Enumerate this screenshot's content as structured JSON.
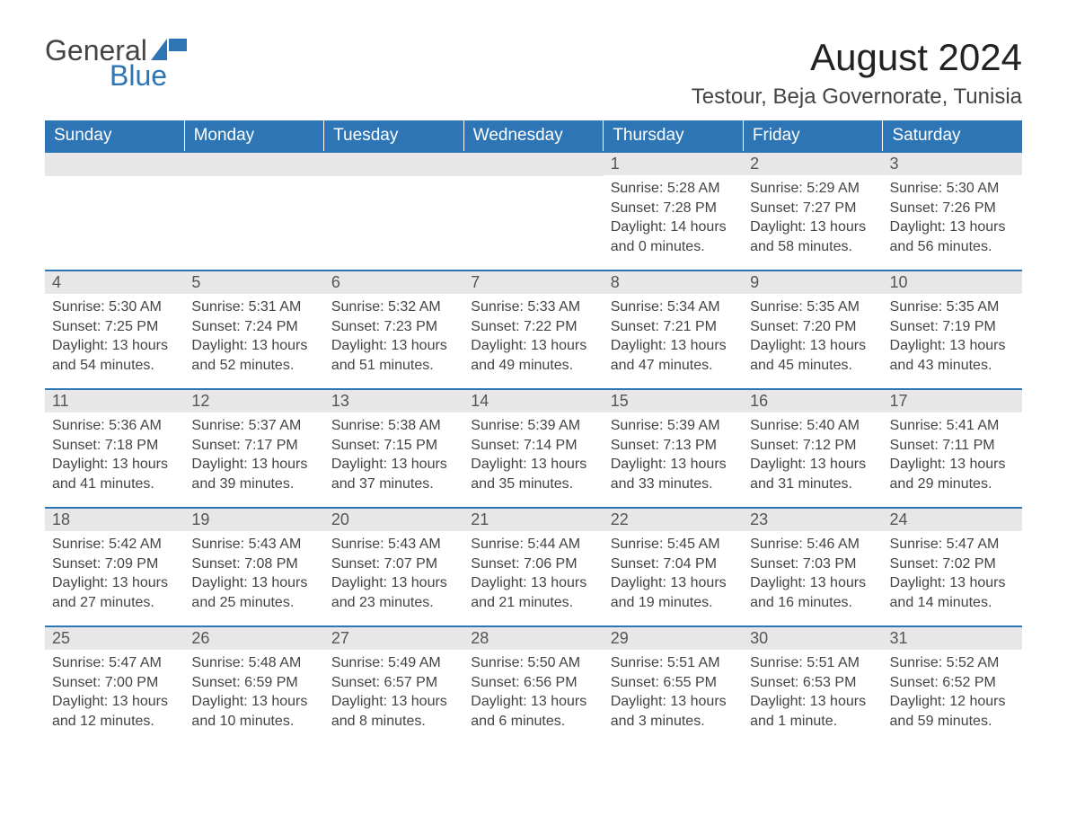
{
  "logo": {
    "word1": "General",
    "word2": "Blue",
    "flag_color": "#2e75b6"
  },
  "title": {
    "month": "August 2024",
    "location": "Testour, Beja Governorate, Tunisia"
  },
  "colors": {
    "header_bg": "#2e75b6",
    "header_text": "#ffffff",
    "row_border": "#2e75b6",
    "daynum_bg": "#e7e7e7",
    "daynum_text": "#555555",
    "body_text": "#444444",
    "page_bg": "#ffffff"
  },
  "calendar": {
    "type": "table",
    "weekdays": [
      "Sunday",
      "Monday",
      "Tuesday",
      "Wednesday",
      "Thursday",
      "Friday",
      "Saturday"
    ],
    "label_sunrise": "Sunrise:",
    "label_sunset": "Sunset:",
    "label_daylight": "Daylight:",
    "weeks": [
      [
        null,
        null,
        null,
        null,
        {
          "n": "1",
          "sunrise": "5:28 AM",
          "sunset": "7:28 PM",
          "daylight": "14 hours and 0 minutes."
        },
        {
          "n": "2",
          "sunrise": "5:29 AM",
          "sunset": "7:27 PM",
          "daylight": "13 hours and 58 minutes."
        },
        {
          "n": "3",
          "sunrise": "5:30 AM",
          "sunset": "7:26 PM",
          "daylight": "13 hours and 56 minutes."
        }
      ],
      [
        {
          "n": "4",
          "sunrise": "5:30 AM",
          "sunset": "7:25 PM",
          "daylight": "13 hours and 54 minutes."
        },
        {
          "n": "5",
          "sunrise": "5:31 AM",
          "sunset": "7:24 PM",
          "daylight": "13 hours and 52 minutes."
        },
        {
          "n": "6",
          "sunrise": "5:32 AM",
          "sunset": "7:23 PM",
          "daylight": "13 hours and 51 minutes."
        },
        {
          "n": "7",
          "sunrise": "5:33 AM",
          "sunset": "7:22 PM",
          "daylight": "13 hours and 49 minutes."
        },
        {
          "n": "8",
          "sunrise": "5:34 AM",
          "sunset": "7:21 PM",
          "daylight": "13 hours and 47 minutes."
        },
        {
          "n": "9",
          "sunrise": "5:35 AM",
          "sunset": "7:20 PM",
          "daylight": "13 hours and 45 minutes."
        },
        {
          "n": "10",
          "sunrise": "5:35 AM",
          "sunset": "7:19 PM",
          "daylight": "13 hours and 43 minutes."
        }
      ],
      [
        {
          "n": "11",
          "sunrise": "5:36 AM",
          "sunset": "7:18 PM",
          "daylight": "13 hours and 41 minutes."
        },
        {
          "n": "12",
          "sunrise": "5:37 AM",
          "sunset": "7:17 PM",
          "daylight": "13 hours and 39 minutes."
        },
        {
          "n": "13",
          "sunrise": "5:38 AM",
          "sunset": "7:15 PM",
          "daylight": "13 hours and 37 minutes."
        },
        {
          "n": "14",
          "sunrise": "5:39 AM",
          "sunset": "7:14 PM",
          "daylight": "13 hours and 35 minutes."
        },
        {
          "n": "15",
          "sunrise": "5:39 AM",
          "sunset": "7:13 PM",
          "daylight": "13 hours and 33 minutes."
        },
        {
          "n": "16",
          "sunrise": "5:40 AM",
          "sunset": "7:12 PM",
          "daylight": "13 hours and 31 minutes."
        },
        {
          "n": "17",
          "sunrise": "5:41 AM",
          "sunset": "7:11 PM",
          "daylight": "13 hours and 29 minutes."
        }
      ],
      [
        {
          "n": "18",
          "sunrise": "5:42 AM",
          "sunset": "7:09 PM",
          "daylight": "13 hours and 27 minutes."
        },
        {
          "n": "19",
          "sunrise": "5:43 AM",
          "sunset": "7:08 PM",
          "daylight": "13 hours and 25 minutes."
        },
        {
          "n": "20",
          "sunrise": "5:43 AM",
          "sunset": "7:07 PM",
          "daylight": "13 hours and 23 minutes."
        },
        {
          "n": "21",
          "sunrise": "5:44 AM",
          "sunset": "7:06 PM",
          "daylight": "13 hours and 21 minutes."
        },
        {
          "n": "22",
          "sunrise": "5:45 AM",
          "sunset": "7:04 PM",
          "daylight": "13 hours and 19 minutes."
        },
        {
          "n": "23",
          "sunrise": "5:46 AM",
          "sunset": "7:03 PM",
          "daylight": "13 hours and 16 minutes."
        },
        {
          "n": "24",
          "sunrise": "5:47 AM",
          "sunset": "7:02 PM",
          "daylight": "13 hours and 14 minutes."
        }
      ],
      [
        {
          "n": "25",
          "sunrise": "5:47 AM",
          "sunset": "7:00 PM",
          "daylight": "13 hours and 12 minutes."
        },
        {
          "n": "26",
          "sunrise": "5:48 AM",
          "sunset": "6:59 PM",
          "daylight": "13 hours and 10 minutes."
        },
        {
          "n": "27",
          "sunrise": "5:49 AM",
          "sunset": "6:57 PM",
          "daylight": "13 hours and 8 minutes."
        },
        {
          "n": "28",
          "sunrise": "5:50 AM",
          "sunset": "6:56 PM",
          "daylight": "13 hours and 6 minutes."
        },
        {
          "n": "29",
          "sunrise": "5:51 AM",
          "sunset": "6:55 PM",
          "daylight": "13 hours and 3 minutes."
        },
        {
          "n": "30",
          "sunrise": "5:51 AM",
          "sunset": "6:53 PM",
          "daylight": "13 hours and 1 minute."
        },
        {
          "n": "31",
          "sunrise": "5:52 AM",
          "sunset": "6:52 PM",
          "daylight": "12 hours and 59 minutes."
        }
      ]
    ]
  }
}
